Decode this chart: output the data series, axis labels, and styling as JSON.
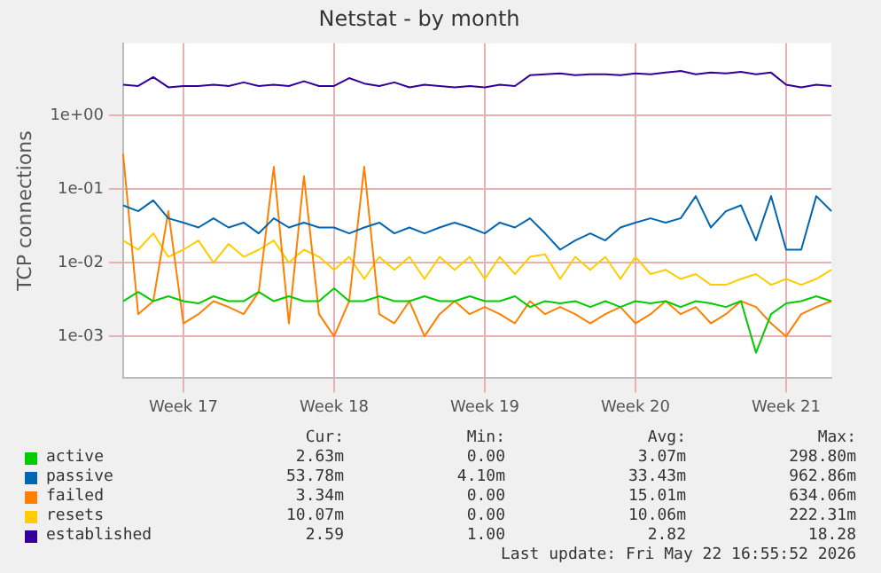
{
  "chart_data": {
    "type": "line",
    "title": "Netstat - by month",
    "ylabel": "TCP connections",
    "categories": [
      null,
      null,
      null,
      null,
      "Week 17",
      null,
      null,
      null,
      null,
      null,
      null,
      null,
      null,
      null,
      "Week 18",
      null,
      null,
      null,
      null,
      null,
      null,
      null,
      null,
      null,
      "Week 19",
      null,
      null,
      null,
      null,
      null,
      null,
      null,
      null,
      null,
      "Week 20",
      null,
      null,
      null,
      null,
      null,
      null,
      null,
      null,
      null,
      "Week 21",
      null,
      null,
      null
    ],
    "log": "y",
    "ylim": [
      0.00027,
      9.5
    ],
    "yticks": [
      {
        "value": 0.001,
        "label": "1e-03"
      },
      {
        "value": 0.01,
        "label": "1e-02"
      },
      {
        "value": 0.1,
        "label": "1e-01"
      },
      {
        "value": 1,
        "label": "1e+00"
      }
    ],
    "grid": true,
    "legend": "bottom",
    "marker": "none",
    "line_style": "solid",
    "series": [
      {
        "name": "active",
        "color": "#00cc00",
        "values": [
          0.003,
          0.004,
          0.003,
          0.0035,
          0.003,
          0.0028,
          0.0035,
          0.003,
          0.003,
          0.004,
          0.003,
          0.0035,
          0.003,
          0.003,
          0.0045,
          0.003,
          0.003,
          0.0035,
          0.003,
          0.003,
          0.0035,
          0.003,
          0.003,
          0.0035,
          0.003,
          0.003,
          0.0035,
          0.0025,
          0.003,
          0.0028,
          0.003,
          0.0025,
          0.003,
          0.0025,
          0.003,
          0.0028,
          0.003,
          0.0025,
          0.003,
          0.0028,
          0.0025,
          0.003,
          0.0006,
          0.002,
          0.0028,
          0.003,
          0.0035,
          0.003
        ]
      },
      {
        "name": "passive",
        "color": "#0066b3",
        "values": [
          0.06,
          0.05,
          0.07,
          0.04,
          0.035,
          0.03,
          0.04,
          0.03,
          0.035,
          0.025,
          0.04,
          0.03,
          0.035,
          0.03,
          0.03,
          0.025,
          0.03,
          0.035,
          0.025,
          0.03,
          0.025,
          0.03,
          0.035,
          0.03,
          0.025,
          0.035,
          0.03,
          0.04,
          0.025,
          0.015,
          0.02,
          0.025,
          0.02,
          0.03,
          0.035,
          0.04,
          0.035,
          0.04,
          0.08,
          0.03,
          0.05,
          0.06,
          0.02,
          0.08,
          0.015,
          0.015,
          0.08,
          0.05
        ]
      },
      {
        "name": "failed",
        "color": "#ff8000",
        "values": [
          0.3,
          0.002,
          0.003,
          0.05,
          0.0015,
          0.002,
          0.003,
          0.0025,
          0.002,
          0.004,
          0.2,
          0.0015,
          0.15,
          0.002,
          0.001,
          0.003,
          0.2,
          0.002,
          0.0015,
          0.003,
          0.001,
          0.002,
          0.003,
          0.002,
          0.0025,
          0.002,
          0.0015,
          0.003,
          0.002,
          0.0025,
          0.002,
          0.0015,
          0.002,
          0.0025,
          0.0015,
          0.002,
          0.003,
          0.002,
          0.0025,
          0.0015,
          0.002,
          0.003,
          0.0025,
          0.0015,
          0.001,
          0.002,
          0.0025,
          0.003
        ]
      },
      {
        "name": "resets",
        "color": "#ffcc00",
        "values": [
          0.02,
          0.015,
          0.025,
          0.012,
          0.015,
          0.02,
          0.01,
          0.018,
          0.012,
          0.015,
          0.02,
          0.01,
          0.015,
          0.012,
          0.008,
          0.012,
          0.006,
          0.012,
          0.008,
          0.012,
          0.006,
          0.012,
          0.008,
          0.012,
          0.006,
          0.012,
          0.007,
          0.012,
          0.013,
          0.006,
          0.012,
          0.008,
          0.012,
          0.006,
          0.012,
          0.007,
          0.008,
          0.006,
          0.007,
          0.005,
          0.005,
          0.006,
          0.007,
          0.005,
          0.006,
          0.005,
          0.006,
          0.008
        ]
      },
      {
        "name": "established",
        "color": "#330099",
        "values": [
          2.6,
          2.5,
          3.3,
          2.4,
          2.5,
          2.5,
          2.6,
          2.5,
          2.8,
          2.5,
          2.6,
          2.5,
          2.9,
          2.5,
          2.5,
          3.2,
          2.7,
          2.5,
          2.8,
          2.4,
          2.6,
          2.5,
          2.4,
          2.5,
          2.4,
          2.6,
          2.5,
          3.5,
          3.6,
          3.7,
          3.5,
          3.6,
          3.6,
          3.5,
          3.7,
          3.6,
          3.8,
          4.0,
          3.6,
          3.8,
          3.7,
          3.9,
          3.6,
          3.8,
          2.6,
          2.4,
          2.6,
          2.5
        ]
      }
    ],
    "annotations": [
      "Cur:",
      "Min:",
      "Avg:",
      "Max:",
      "2.63m",
      "0.00",
      "3.07m",
      "298.80m",
      "53.78m",
      "4.10m",
      "33.43m",
      "962.86m",
      "3.34m",
      "0.00",
      "15.01m",
      "634.06m",
      "10.07m",
      "0.00",
      "10.06m",
      "222.31m",
      "2.59",
      "1.00",
      "2.82",
      "18.28",
      "Last update: Fri May 22 16:55:52 2026"
    ]
  }
}
